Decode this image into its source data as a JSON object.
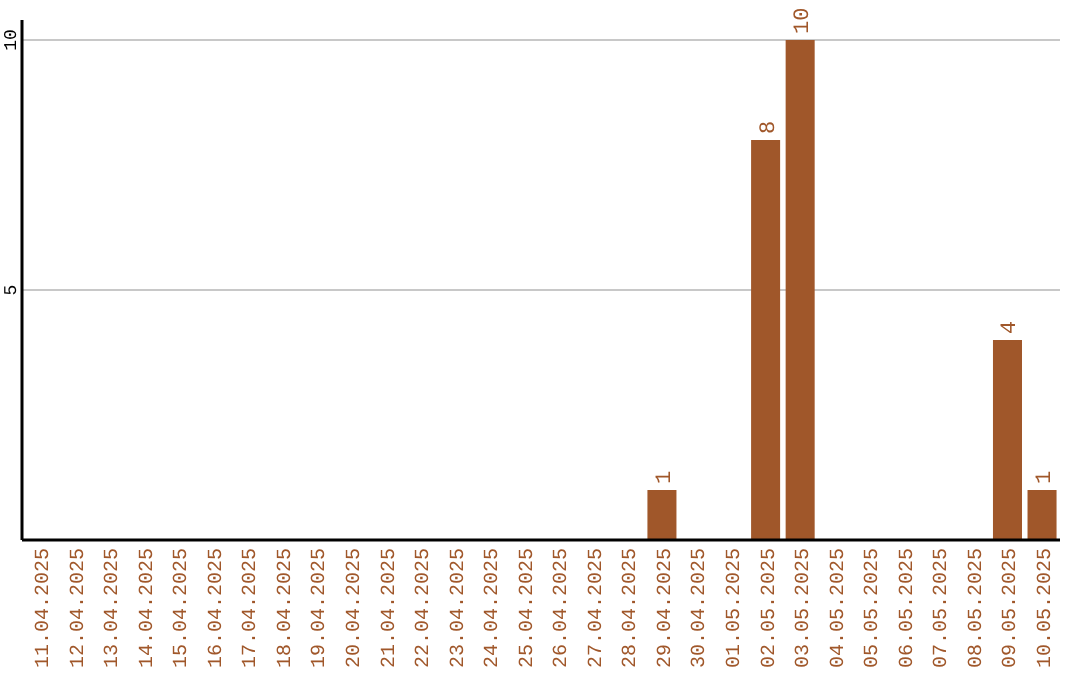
{
  "chart_data": {
    "type": "bar",
    "categories": [
      "11.04.2025",
      "12.04.2025",
      "13.04.2025",
      "14.04.2025",
      "15.04.2025",
      "16.04.2025",
      "17.04.2025",
      "18.04.2025",
      "19.04.2025",
      "20.04.2025",
      "21.04.2025",
      "22.04.2025",
      "23.04.2025",
      "24.04.2025",
      "25.04.2025",
      "26.04.2025",
      "27.04.2025",
      "28.04.2025",
      "29.04.2025",
      "30.04.2025",
      "01.05.2025",
      "02.05.2025",
      "03.05.2025",
      "04.05.2025",
      "05.05.2025",
      "06.05.2025",
      "07.05.2025",
      "08.05.2025",
      "09.05.2025",
      "10.05.2025"
    ],
    "values": [
      0,
      0,
      0,
      0,
      0,
      0,
      0,
      0,
      0,
      0,
      0,
      0,
      0,
      0,
      0,
      0,
      0,
      0,
      1,
      0,
      0,
      8,
      10,
      0,
      0,
      0,
      0,
      0,
      4,
      1
    ],
    "value_labels": [
      null,
      null,
      null,
      null,
      null,
      null,
      null,
      null,
      null,
      null,
      null,
      null,
      null,
      null,
      null,
      null,
      null,
      null,
      "1",
      null,
      null,
      "8",
      "10",
      null,
      null,
      null,
      null,
      null,
      "4",
      "1"
    ],
    "color": "#a0572a",
    "ylim": [
      0,
      10.4
    ],
    "yticks": [
      5,
      10
    ],
    "grid": "y"
  }
}
